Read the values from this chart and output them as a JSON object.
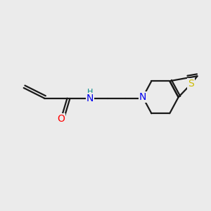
{
  "background_color": "#ebebeb",
  "bond_color": "#1a1a1a",
  "bond_width": 1.6,
  "atom_colors": {
    "O": "#ff0000",
    "N": "#0000ee",
    "S": "#ccbb00",
    "H": "#008888",
    "C": "#1a1a1a"
  },
  "figsize": [
    3.0,
    3.0
  ],
  "dpi": 100
}
